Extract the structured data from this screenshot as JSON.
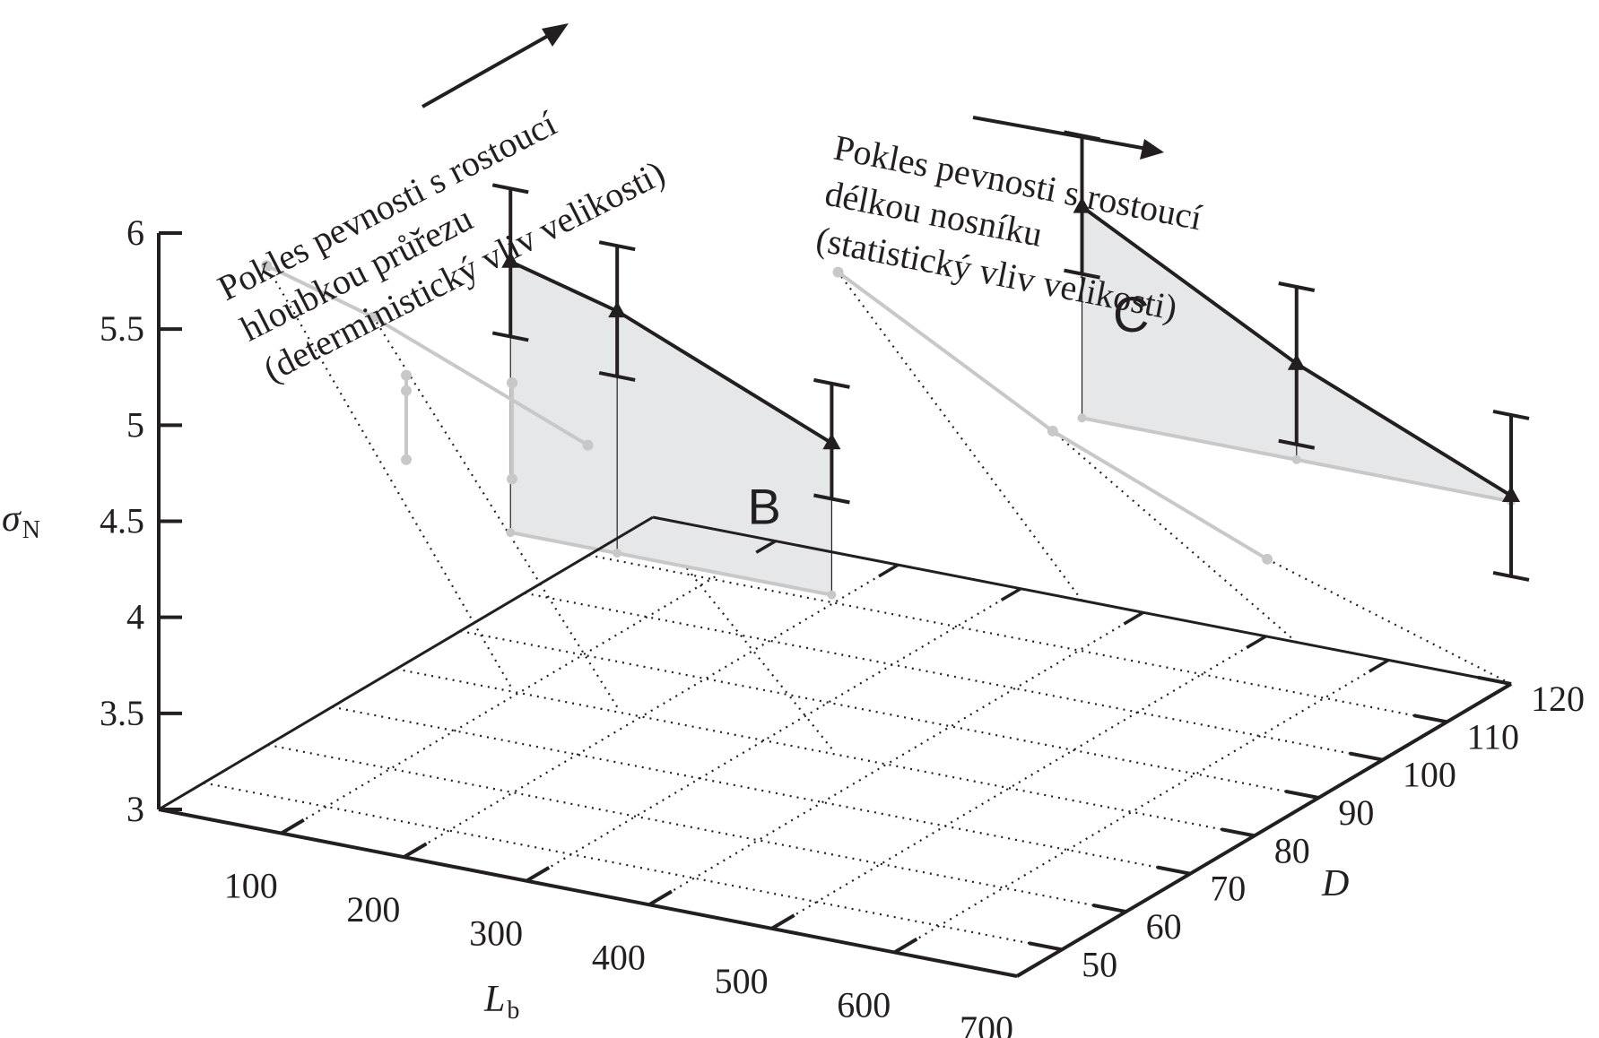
{
  "chart_data": {
    "type": "line",
    "zlabel": "σ",
    "zlabel_sub": "N",
    "xlabel": "L",
    "xlabel_sub": "b",
    "ylabel": "D",
    "zlim": [
      3,
      6
    ],
    "xlim": [
      0,
      700
    ],
    "ylim": [
      43,
      120
    ],
    "z_ticks": [
      "3",
      "3.5",
      "4",
      "4.5",
      "5",
      "5.5",
      "6"
    ],
    "x_ticks": [
      "100",
      "200",
      "300",
      "400",
      "500",
      "600",
      "700"
    ],
    "y_ticks": [
      "50",
      "60",
      "70",
      "80",
      "90",
      "100",
      "110",
      "120"
    ],
    "series": [
      {
        "name": "B",
        "points": [
          {
            "L": 88,
            "D": 81,
            "mean": 5.21,
            "low": 4.82,
            "high": 5.59
          },
          {
            "L": 175,
            "D": 81,
            "mean": 5.06,
            "low": 4.72,
            "high": 5.4
          },
          {
            "L": 350,
            "D": 81,
            "mean": 4.59,
            "low": 4.3,
            "high": 4.9
          }
        ]
      },
      {
        "name": "C",
        "points": [
          {
            "L": 350,
            "D": 120,
            "mean": 5.05,
            "low": 4.7,
            "high": 5.42
          },
          {
            "L": 525,
            "D": 120,
            "mean": 4.45,
            "low": 4.03,
            "high": 4.85
          },
          {
            "L": 700,
            "D": 120,
            "mean": 3.98,
            "low": 3.56,
            "high": 4.4
          }
        ]
      }
    ],
    "back_projection": [
      {
        "L": 88,
        "D": 43,
        "value": 5.94
      },
      {
        "L": 175,
        "D": 43,
        "value": 5.78
      },
      {
        "L": 350,
        "D": 43,
        "value": 5.33
      },
      {
        "L": 350,
        "D": 82,
        "value": 5.46
      },
      {
        "L": 525,
        "D": 82,
        "value": 4.85
      },
      {
        "L": 700,
        "D": 82,
        "value": 4.4
      }
    ],
    "side_projection": [
      {
        "D": 81,
        "low": 4.82,
        "high": 5.26,
        "mid": 5.18
      },
      {
        "D": 120,
        "low": 4.72,
        "high": 5.22,
        "mid": 5.22
      }
    ],
    "annotations": {
      "left": [
        "Pokles pevnosti s rostoucí",
        "hloubkou průřezu",
        "(deterministický vliv velikosti)"
      ],
      "right": [
        "Pokles pevnosti s rostoucí",
        "délkou nosníku",
        "(statistický vliv velikosti)"
      ]
    },
    "colors": {
      "ink": "#231f20",
      "gray": "#c8c8c8",
      "fill": "#e6e7e8"
    }
  }
}
